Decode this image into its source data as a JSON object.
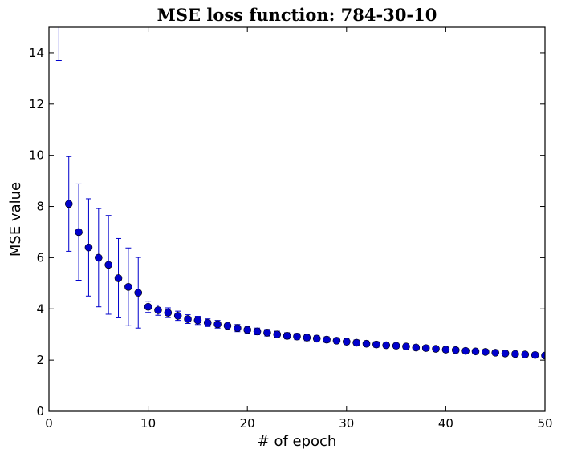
{
  "chart_data": {
    "type": "scatter",
    "title": "MSE loss function: 784-30-10",
    "xlabel": "# of epoch",
    "ylabel": "MSE value",
    "xlim": [
      0,
      50
    ],
    "ylim": [
      0,
      15
    ],
    "xticks": [
      0,
      10,
      20,
      30,
      40,
      50
    ],
    "yticks": [
      0,
      2,
      4,
      6,
      8,
      10,
      12,
      14
    ],
    "grid": false,
    "legend": "none",
    "color": "#0000cc",
    "series": [
      {
        "x": [
          1,
          2,
          3,
          4,
          5,
          6,
          7,
          8,
          9,
          10,
          11,
          12,
          13,
          14,
          15,
          16,
          17,
          18,
          19,
          20,
          21,
          22,
          23,
          24,
          25,
          26,
          27,
          28,
          29,
          30,
          31,
          32,
          33,
          34,
          35,
          36,
          37,
          38,
          39,
          40,
          41,
          42,
          43,
          44,
          45,
          46,
          47,
          48,
          49,
          50
        ],
        "y": [
          16.0,
          8.1,
          7.0,
          6.4,
          6.0,
          5.72,
          5.2,
          4.86,
          4.63,
          4.08,
          3.95,
          3.85,
          3.73,
          3.6,
          3.55,
          3.46,
          3.4,
          3.34,
          3.25,
          3.18,
          3.12,
          3.07,
          3.0,
          2.95,
          2.92,
          2.88,
          2.84,
          2.8,
          2.76,
          2.72,
          2.68,
          2.64,
          2.61,
          2.58,
          2.56,
          2.53,
          2.49,
          2.47,
          2.44,
          2.41,
          2.39,
          2.36,
          2.34,
          2.32,
          2.29,
          2.26,
          2.24,
          2.22,
          2.2,
          2.18
        ],
        "error": [
          2.3,
          1.85,
          1.88,
          1.9,
          1.92,
          1.93,
          1.55,
          1.52,
          1.38,
          0.22,
          0.2,
          0.19,
          0.18,
          0.17,
          0.16,
          0.15,
          0.15,
          0.15,
          0.14,
          0.14,
          0.13,
          0.13,
          0.13,
          0.12,
          0.12,
          0.12,
          0.12,
          0.11,
          0.11,
          0.11,
          0.11,
          0.11,
          0.11,
          0.1,
          0.1,
          0.1,
          0.1,
          0.1,
          0.1,
          0.1,
          0.1,
          0.09,
          0.09,
          0.09,
          0.09,
          0.09,
          0.09,
          0.09,
          0.09,
          0.09
        ]
      }
    ]
  }
}
